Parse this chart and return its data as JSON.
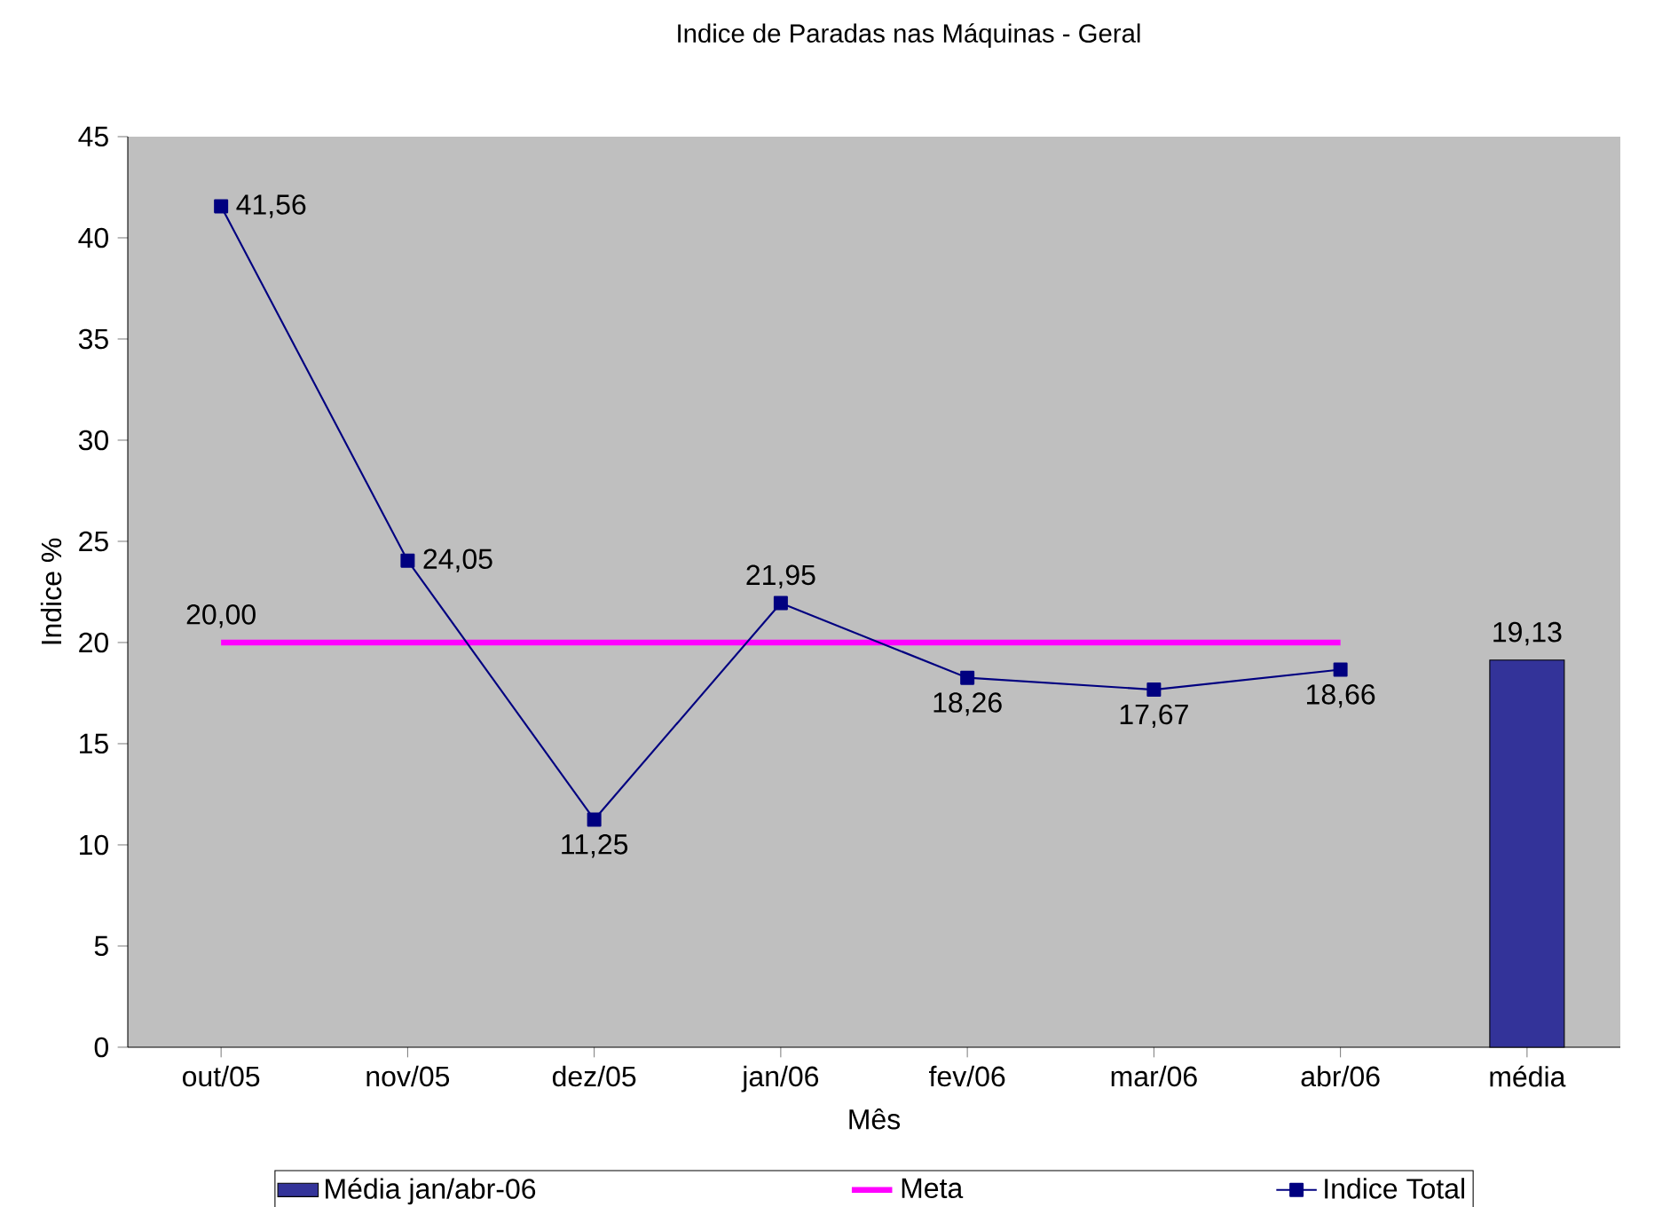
{
  "chart_data": {
    "type": "line",
    "title": "Indice de Paradas nas Máquinas - Geral",
    "xlabel": "Mês",
    "ylabel": "Indice %",
    "categories": [
      "out/05",
      "nov/05",
      "dez/05",
      "jan/06",
      "fev/06",
      "mar/06",
      "abr/06",
      "média"
    ],
    "series": [
      {
        "name": "Média jan/abr-06",
        "type": "bar",
        "color": "#333399",
        "values": [
          null,
          null,
          null,
          null,
          null,
          null,
          null,
          19.13
        ],
        "value_labels": [
          null,
          null,
          null,
          null,
          null,
          null,
          null,
          "19,13"
        ]
      },
      {
        "name": "Meta",
        "color": "#ff00ff",
        "marker": "none",
        "values": [
          20,
          20,
          20,
          20,
          20,
          20,
          20,
          null
        ],
        "value_labels": [
          "20,00",
          null,
          null,
          null,
          null,
          null,
          null,
          null
        ]
      },
      {
        "name": "Indice Total",
        "color": "#000080",
        "marker": "square",
        "values": [
          41.56,
          24.05,
          11.25,
          21.95,
          18.26,
          17.67,
          18.66,
          null
        ],
        "value_labels": [
          "41,56",
          "24,05",
          "11,25",
          "21,95",
          "18,26",
          "17,67",
          "18,66",
          null
        ]
      }
    ],
    "ylim": [
      0,
      45
    ],
    "yticks": [
      0,
      5,
      10,
      15,
      20,
      25,
      30,
      35,
      40,
      45
    ],
    "grid": false,
    "legend": "bottom"
  }
}
